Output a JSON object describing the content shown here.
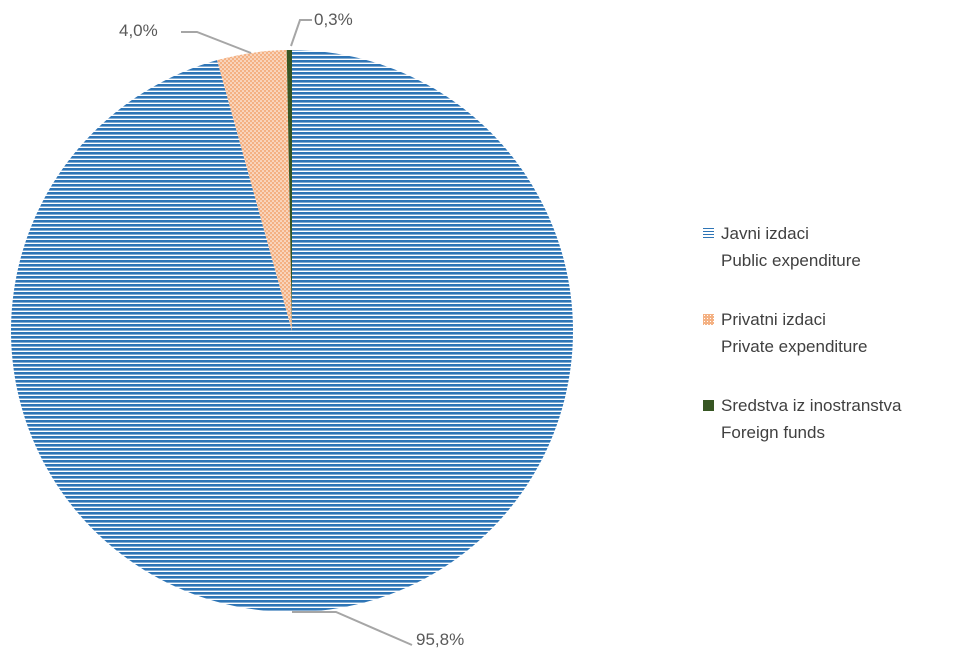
{
  "chart_data": {
    "type": "pie",
    "title": "",
    "slices": [
      {
        "label_line1": "Javni izdaci",
        "label_line2": "Public expenditure",
        "value": 95.8,
        "display": "95,8%",
        "color": "#2e75b6",
        "pattern": "horizontal-stripes"
      },
      {
        "label_line1": "Privatni izdaci",
        "label_line2": "Private expenditure",
        "value": 4.0,
        "display": "4,0%",
        "color": "#f4b183",
        "pattern": "dotted"
      },
      {
        "label_line1": "Sredstva iz inostranstva",
        "label_line2": "Foreign funds",
        "value": 0.3,
        "display": "0,3%",
        "color": "#375623",
        "pattern": "solid"
      }
    ],
    "legend_position": "right"
  }
}
